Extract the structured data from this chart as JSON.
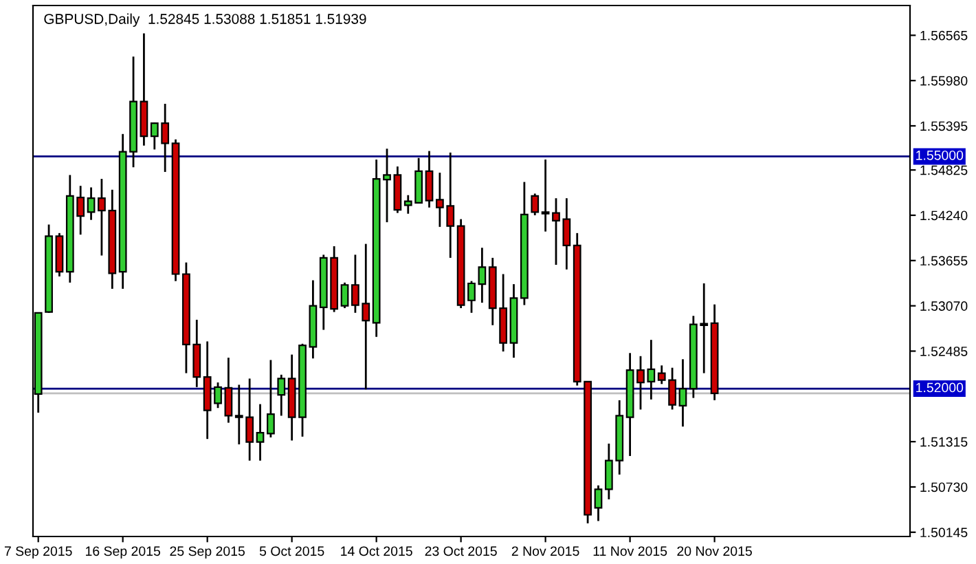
{
  "chart_data": {
    "type": "candlestick",
    "title": "GBPUSD,Daily  1.52845 1.53088 1.51851 1.51939",
    "categories": [
      "7 Sep 2015",
      null,
      null,
      null,
      null,
      null,
      null,
      null,
      "16 Sep 2015",
      null,
      null,
      null,
      null,
      null,
      null,
      null,
      "25 Sep 2015",
      null,
      null,
      null,
      null,
      null,
      null,
      null,
      "5 Oct 2015",
      null,
      null,
      null,
      null,
      null,
      null,
      null,
      "14 Oct 2015",
      null,
      null,
      null,
      null,
      null,
      null,
      null,
      "23 Oct 2015",
      null,
      null,
      null,
      null,
      null,
      null,
      null,
      "2 Nov 2015",
      null,
      null,
      null,
      null,
      null,
      null,
      null,
      "11 Nov 2015",
      null,
      null,
      null,
      null,
      null,
      null,
      null,
      "20 Nov 2015",
      null,
      null,
      null,
      null,
      null,
      null,
      null,
      null,
      null,
      null,
      null,
      null,
      null,
      null,
      null,
      null,
      null,
      null
    ],
    "ohlc": [
      [
        1.5193,
        1.5298,
        1.5169,
        1.5298
      ],
      [
        1.5299,
        1.5412,
        1.5298,
        1.5397
      ],
      [
        1.5397,
        1.5401,
        1.5345,
        1.5351
      ],
      [
        1.5351,
        1.5476,
        1.5337,
        1.5449
      ],
      [
        1.5447,
        1.5462,
        1.5399,
        1.5423
      ],
      [
        1.5428,
        1.546,
        1.5418,
        1.5446
      ],
      [
        1.5446,
        1.5471,
        1.5372,
        1.543
      ],
      [
        1.543,
        1.5457,
        1.5329,
        1.5349
      ],
      [
        1.5351,
        1.5529,
        1.5329,
        1.5506
      ],
      [
        1.5506,
        1.5629,
        1.5486,
        1.5571
      ],
      [
        1.5571,
        1.5659,
        1.5514,
        1.5526
      ],
      [
        1.5526,
        1.5544,
        1.5509,
        1.5543
      ],
      [
        1.5543,
        1.5568,
        1.548,
        1.5517
      ],
      [
        1.5517,
        1.5522,
        1.5339,
        1.5348
      ],
      [
        1.5348,
        1.5363,
        1.522,
        1.5257
      ],
      [
        1.5257,
        1.5289,
        1.5202,
        1.5215
      ],
      [
        1.5215,
        1.5261,
        1.5135,
        1.5172
      ],
      [
        1.5181,
        1.5208,
        1.5175,
        1.5202
      ],
      [
        1.5201,
        1.524,
        1.5156,
        1.5165
      ],
      [
        1.5165,
        1.5205,
        1.5128,
        1.5163
      ],
      [
        1.5163,
        1.5213,
        1.5107,
        1.5131
      ],
      [
        1.5131,
        1.518,
        1.5107,
        1.5143
      ],
      [
        1.5142,
        1.5237,
        1.5137,
        1.5167
      ],
      [
        1.5192,
        1.5218,
        1.5165,
        1.5213
      ],
      [
        1.5213,
        1.5244,
        1.5133,
        1.5163
      ],
      [
        1.5163,
        1.5258,
        1.5138,
        1.5256
      ],
      [
        1.5254,
        1.534,
        1.5239,
        1.5307
      ],
      [
        1.5305,
        1.5373,
        1.5276,
        1.5369
      ],
      [
        1.5369,
        1.5384,
        1.5299,
        1.5303
      ],
      [
        1.5307,
        1.5337,
        1.5304,
        1.5334
      ],
      [
        1.5334,
        1.5373,
        1.5298,
        1.5308
      ],
      [
        1.531,
        1.5387,
        1.5199,
        1.5288
      ],
      [
        1.5285,
        1.5496,
        1.5267,
        1.5471
      ],
      [
        1.547,
        1.551,
        1.5415,
        1.5476
      ],
      [
        1.5476,
        1.5487,
        1.5427,
        1.5431
      ],
      [
        1.5437,
        1.545,
        1.5426,
        1.5442
      ],
      [
        1.544,
        1.5498,
        1.544,
        1.5481
      ],
      [
        1.5481,
        1.5507,
        1.5434,
        1.5443
      ],
      [
        1.5444,
        1.5479,
        1.5409,
        1.5434
      ],
      [
        1.5436,
        1.5505,
        1.5369,
        1.541
      ],
      [
        1.541,
        1.5419,
        1.5304,
        1.5308
      ],
      [
        1.5314,
        1.5339,
        1.5298,
        1.5336
      ],
      [
        1.5335,
        1.5382,
        1.5311,
        1.5357
      ],
      [
        1.5357,
        1.5369,
        1.5282,
        1.5304
      ],
      [
        1.5304,
        1.5348,
        1.5248,
        1.5259
      ],
      [
        1.5259,
        1.5335,
        1.524,
        1.5317
      ],
      [
        1.5317,
        1.5467,
        1.5308,
        1.5425
      ],
      [
        1.5449,
        1.5452,
        1.5424,
        1.5428
      ],
      [
        1.5428,
        1.5496,
        1.5403,
        1.5426
      ],
      [
        1.5427,
        1.5446,
        1.536,
        1.5417
      ],
      [
        1.5419,
        1.5446,
        1.5354,
        1.5385
      ],
      [
        1.5385,
        1.5401,
        1.5204,
        1.5209
      ],
      [
        1.5209,
        1.5209,
        1.5026,
        1.5037
      ],
      [
        1.5046,
        1.5075,
        1.5029,
        1.507
      ],
      [
        1.507,
        1.5129,
        1.5057,
        1.5107
      ],
      [
        1.5107,
        1.5185,
        1.5089,
        1.5165
      ],
      [
        1.5163,
        1.5246,
        1.5113,
        1.5224
      ],
      [
        1.5224,
        1.5242,
        1.5173,
        1.5208
      ],
      [
        1.5209,
        1.5263,
        1.5186,
        1.5225
      ],
      [
        1.522,
        1.523,
        1.5206,
        1.5211
      ],
      [
        1.5211,
        1.5227,
        1.5173,
        1.5179
      ],
      [
        1.5178,
        1.5238,
        1.5151,
        1.52
      ],
      [
        1.52,
        1.5294,
        1.5188,
        1.5283
      ],
      [
        1.5282,
        1.5336,
        1.522,
        1.5284
      ],
      [
        1.52845,
        1.53088,
        1.51851,
        1.51939
      ],
      null,
      null,
      null,
      null,
      null,
      null,
      null,
      null,
      null,
      null,
      null,
      null,
      null,
      null,
      null,
      null,
      null,
      null
    ],
    "colors": [
      "#32cd32",
      "#32cd32",
      "#cc0000",
      "#32cd32",
      "#cc0000",
      "#32cd32",
      "#cc0000",
      "#cc0000",
      "#32cd32",
      "#32cd32",
      "#cc0000",
      "#32cd32",
      "#cc0000",
      "#cc0000",
      "#cc0000",
      "#cc0000",
      "#cc0000",
      "#32cd32",
      "#cc0000",
      "#000000",
      "#cc0000",
      "#32cd32",
      "#32cd32",
      "#32cd32",
      "#cc0000",
      "#32cd32",
      "#32cd32",
      "#32cd32",
      "#cc0000",
      "#32cd32",
      "#cc0000",
      "#cc0000",
      "#32cd32",
      "#32cd32",
      "#cc0000",
      "#32cd32",
      "#32cd32",
      "#cc0000",
      "#cc0000",
      "#cc0000",
      "#cc0000",
      "#32cd32",
      "#32cd32",
      "#cc0000",
      "#cc0000",
      "#32cd32",
      "#32cd32",
      "#cc0000",
      "#000000",
      "#cc0000",
      "#cc0000",
      "#cc0000",
      "#cc0000",
      "#32cd32",
      "#32cd32",
      "#32cd32",
      "#32cd32",
      "#cc0000",
      "#32cd32",
      "#cc0000",
      "#cc0000",
      "#32cd32",
      "#32cd32",
      "#000000",
      "#cc0000",
      null,
      null,
      null,
      null,
      null,
      null,
      null,
      null,
      null,
      null,
      null,
      null,
      null,
      null,
      null,
      null,
      null,
      null
    ],
    "ylim": [
      1.5009,
      1.5695
    ],
    "yticks": [
      1.50145,
      {
        "value": 1.5073,
        "label": "1.50730"
      },
      1.51315,
      1.52485,
      {
        "value": 1.5307,
        "label": "1.53070"
      },
      1.53655,
      {
        "value": 1.5424,
        "label": "1.54240"
      },
      1.54825,
      1.55395,
      {
        "value": 1.5598,
        "label": "1.55980"
      },
      1.56565
    ],
    "ref_lines": [
      {
        "axis": "y",
        "value": 1.55,
        "label": "1.55000",
        "color": "#000080"
      },
      {
        "axis": "y",
        "value": 1.52,
        "label": "1.52000",
        "color": "#000080"
      },
      {
        "axis": "y",
        "value": 1.51939,
        "color": "#c0c0c0"
      }
    ]
  }
}
